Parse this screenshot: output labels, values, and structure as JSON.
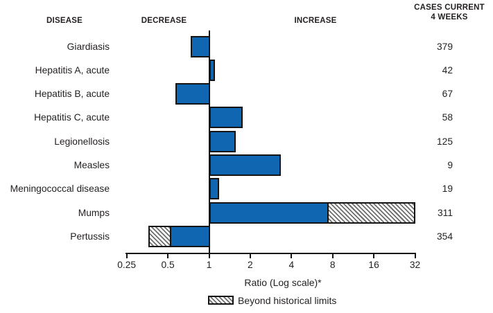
{
  "headers": {
    "disease": "DISEASE",
    "decrease": "DECREASE",
    "increase": "INCREASE",
    "cases_line1": "CASES CURRENT",
    "cases_line2": "4 WEEKS"
  },
  "chart_data": {
    "type": "bar",
    "orientation": "horizontal",
    "x_scale": "log2",
    "baseline": 1,
    "x_range": [
      0.25,
      32
    ],
    "x_ticks": [
      "0.25",
      "0.5",
      "1",
      "2",
      "4",
      "8",
      "16",
      "32"
    ],
    "xlabel": "Ratio (Log scale)*",
    "bar_color": "#1166b2",
    "legend": [
      {
        "label": "Beyond historical limits",
        "swatch": "hatched"
      }
    ],
    "rows": [
      {
        "disease": "Giardiasis",
        "ratio": 0.73,
        "beyond_historical_limits": false,
        "historical_limit": null,
        "cases_current_4_weeks": "379"
      },
      {
        "disease": "Hepatitis A, acute",
        "ratio": 1.11,
        "beyond_historical_limits": false,
        "historical_limit": null,
        "cases_current_4_weeks": "42"
      },
      {
        "disease": "Hepatitis B, acute",
        "ratio": 0.57,
        "beyond_historical_limits": false,
        "historical_limit": null,
        "cases_current_4_weeks": "67"
      },
      {
        "disease": "Hepatitis C, acute",
        "ratio": 1.77,
        "beyond_historical_limits": false,
        "historical_limit": null,
        "cases_current_4_weeks": "58"
      },
      {
        "disease": "Legionellosis",
        "ratio": 1.56,
        "beyond_historical_limits": false,
        "historical_limit": null,
        "cases_current_4_weeks": "125"
      },
      {
        "disease": "Measles",
        "ratio": 3.33,
        "beyond_historical_limits": false,
        "historical_limit": null,
        "cases_current_4_weeks": "9"
      },
      {
        "disease": "Meningococcal disease",
        "ratio": 1.19,
        "beyond_historical_limits": false,
        "historical_limit": null,
        "cases_current_4_weeks": "19"
      },
      {
        "disease": "Mumps",
        "ratio": 32.2,
        "beyond_historical_limits": true,
        "historical_limit": 7.45,
        "cases_current_4_weeks": "311"
      },
      {
        "disease": "Pertussis",
        "ratio": 0.36,
        "beyond_historical_limits": true,
        "historical_limit": 0.52,
        "cases_current_4_weeks": "354"
      }
    ]
  }
}
